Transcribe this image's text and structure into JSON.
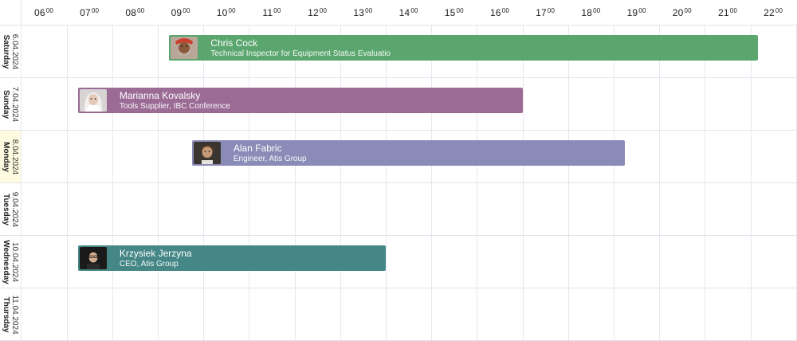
{
  "colors": {
    "grid_line": "#e8e6ef",
    "today_header": "#fffbe0",
    "event_green": "#5aa66e",
    "event_purple": "#9b6b96",
    "event_lavender": "#8a8bb7",
    "event_teal": "#448786"
  },
  "timeline": {
    "hours": [
      {
        "h": "06",
        "m": "00"
      },
      {
        "h": "07",
        "m": "00"
      },
      {
        "h": "08",
        "m": "00"
      },
      {
        "h": "09",
        "m": "00"
      },
      {
        "h": "10",
        "m": "00"
      },
      {
        "h": "11",
        "m": "00"
      },
      {
        "h": "12",
        "m": "00"
      },
      {
        "h": "13",
        "m": "00"
      },
      {
        "h": "14",
        "m": "00"
      },
      {
        "h": "15",
        "m": "00"
      },
      {
        "h": "16",
        "m": "00"
      },
      {
        "h": "17",
        "m": "00"
      },
      {
        "h": "18",
        "m": "00"
      },
      {
        "h": "19",
        "m": "00"
      },
      {
        "h": "20",
        "m": "00"
      },
      {
        "h": "21",
        "m": "00"
      },
      {
        "h": "22",
        "m": "00"
      }
    ]
  },
  "days": [
    {
      "date": "6.04.2024",
      "name": "Saturday",
      "today": false
    },
    {
      "date": "7.04.2024",
      "name": "Sunday",
      "today": false
    },
    {
      "date": "8.04.2024",
      "name": "Monday",
      "today": true
    },
    {
      "date": "9.04.2024",
      "name": "Tuesday",
      "today": false
    },
    {
      "date": "10.04.2024",
      "name": "Wednesday",
      "today": false
    },
    {
      "date": "11.04.2024",
      "name": "Thursday",
      "today": false
    }
  ],
  "events": [
    {
      "day_index": 0,
      "start": "08:45",
      "end": "21:40",
      "name": "Chris Cock",
      "role": "Technical Inspector for Equipment Status Evaluatio",
      "color": "#5aa66e",
      "avatar": "avatar-elder"
    },
    {
      "day_index": 1,
      "start": "06:45",
      "end": "16:30",
      "name": "Marianna Kovalsky",
      "role": "Tools Supplier, IBC Conference",
      "color": "#9b6b96",
      "avatar": "avatar-woman"
    },
    {
      "day_index": 2,
      "start": "09:15",
      "end": "18:45",
      "name": "Alan Fabric",
      "role": "Engineer, Atis Group",
      "color": "#8a8bb7",
      "avatar": "avatar-bearded"
    },
    {
      "day_index": 4,
      "start": "06:45",
      "end": "13:30",
      "name": "Krzysiek Jerzyna",
      "role": "CEO, Atis Group",
      "color": "#448786",
      "avatar": "avatar-dark"
    }
  ]
}
